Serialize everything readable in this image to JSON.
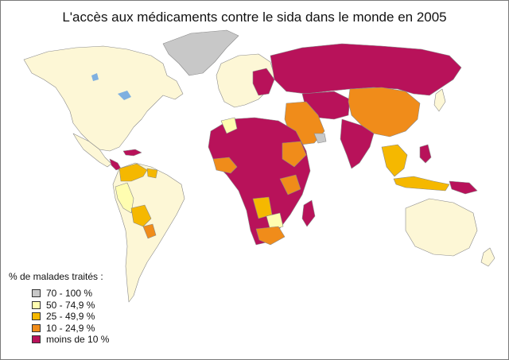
{
  "title": "L'accès aux médicaments contre le sida dans le monde en 2005",
  "legend": {
    "title": "% de malades traités :",
    "items": [
      {
        "label": "70 - 100 %",
        "color": "#c8c8c8"
      },
      {
        "label": "50 - 74,9 %",
        "color": "#fffdb0"
      },
      {
        "label": "25 - 49,9 %",
        "color": "#f5b800"
      },
      {
        "label": "10 - 24,9 %",
        "color": "#f08c1a"
      },
      {
        "label": "moins de 10 %",
        "color": "#b8125a"
      }
    ]
  },
  "colors": {
    "no_data": "#fdf7d6",
    "border": "#8a8a8a",
    "water": "#ffffff",
    "lakes": "#7fb0e0"
  }
}
